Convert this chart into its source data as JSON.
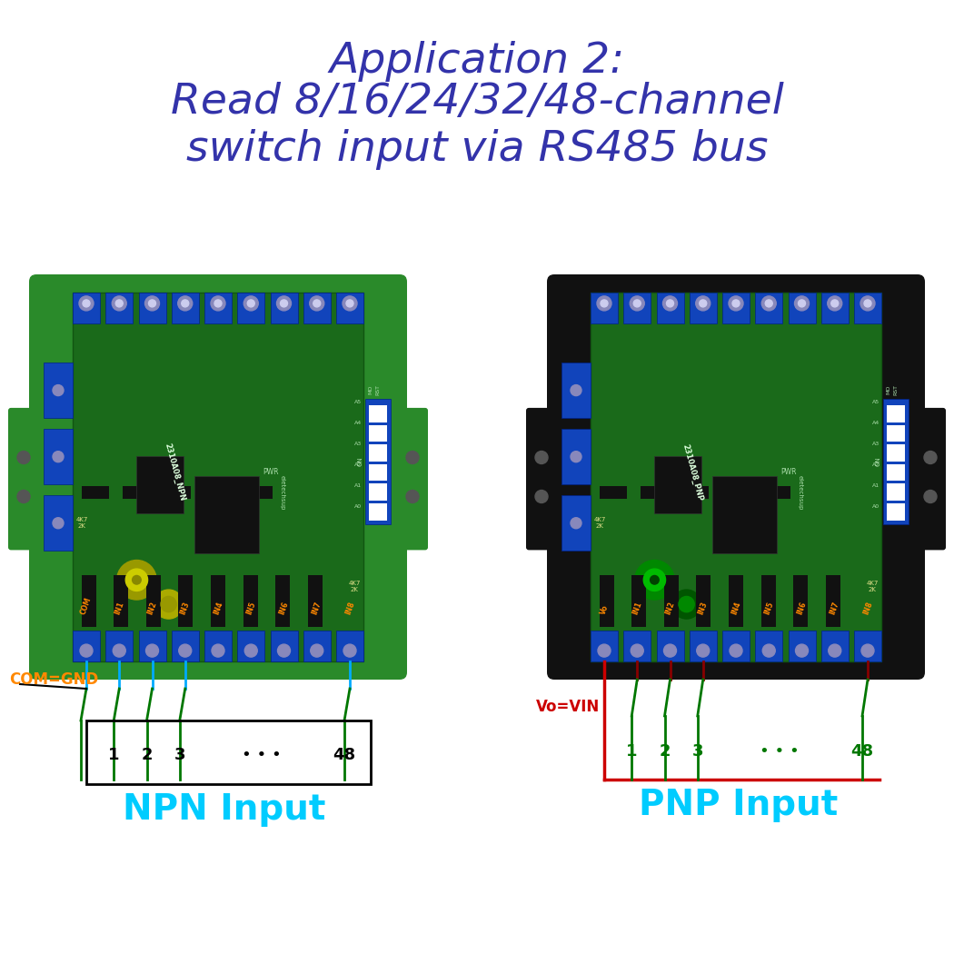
{
  "title_line1": "Application 2:",
  "title_line2": "Read 8/16/24/32/48-channel",
  "title_line3": "switch input via RS485 bus",
  "title_color": "#3333aa",
  "title_fontsize": 34,
  "bg_color": "#ffffff",
  "npn_label": "NPN Input",
  "pnp_label": "PNP Input",
  "input_label_color": "#00ccff",
  "input_label_fontsize": 28,
  "com_gnd_text": "COM=GND",
  "com_gnd_color": "#ff8800",
  "vo_vin_text": "Vo=VIN",
  "vo_vin_color": "#cc0000",
  "wire_color_cyan": "#00aaff",
  "wire_color_red": "#cc0000",
  "wire_color_green": "#007700",
  "wire_color_darkred": "#880000",
  "dots": "• • •"
}
